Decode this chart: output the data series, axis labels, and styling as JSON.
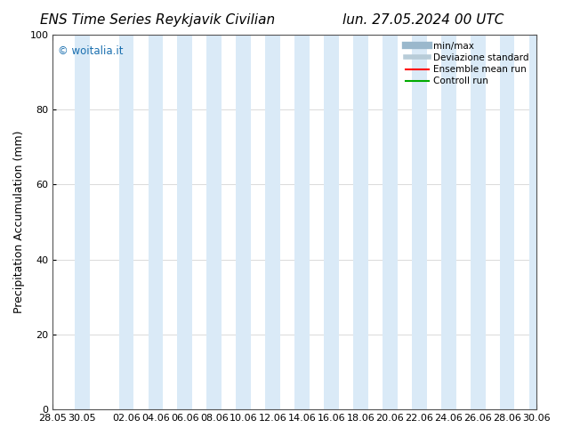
{
  "title_left": "ENS Time Series Reykjavik Civilian",
  "title_right": "lun. 27.05.2024 00 UTC",
  "ylabel": "Precipitation Accumulation (mm)",
  "ylim": [
    0,
    100
  ],
  "yticks": [
    0,
    20,
    40,
    60,
    80,
    100
  ],
  "xtick_labels": [
    "28.05",
    "30.05",
    "02.06",
    "04.06",
    "06.06",
    "08.06",
    "10.06",
    "12.06",
    "14.06",
    "16.06",
    "18.06",
    "20.06",
    "22.06",
    "24.06",
    "26.06",
    "28.06",
    "30.06"
  ],
  "watermark": "© woitalia.it",
  "watermark_color": "#1a6faf",
  "background_color": "#ffffff",
  "plot_bg_color": "#ffffff",
  "band_color": "#daeaf7",
  "band_positions": [
    2,
    4,
    6,
    8,
    10,
    12,
    14,
    16,
    18,
    20,
    22,
    24,
    26,
    28,
    30
  ],
  "legend_entries": [
    "min/max",
    "Deviazione standard",
    "Ensemble mean run",
    "Controll run"
  ],
  "legend_colors": [
    "#b0c8d8",
    "#b0c8d8",
    "#ff0000",
    "#00aa00"
  ],
  "title_fontsize": 11,
  "axis_fontsize": 9,
  "tick_fontsize": 8
}
